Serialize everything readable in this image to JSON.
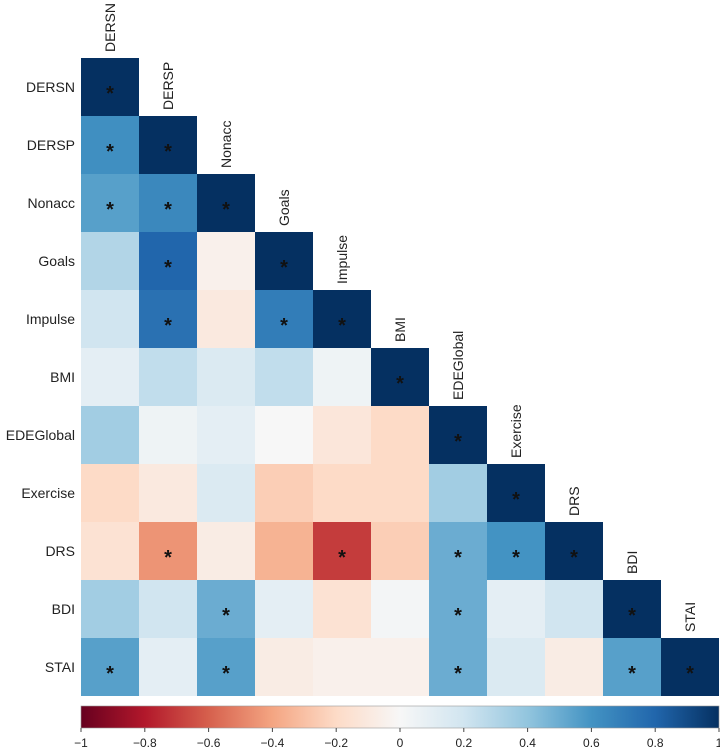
{
  "chart_data": {
    "type": "heatmap",
    "title": "",
    "variables": [
      "DERSN",
      "DERSP",
      "Nonacc",
      "Goals",
      "Impulse",
      "BMI",
      "EDEGlobal",
      "Exercise",
      "DRS",
      "BDI",
      "STAI"
    ],
    "values": [
      [
        1.0
      ],
      [
        0.62,
        1.0
      ],
      [
        0.55,
        0.65,
        1.0
      ],
      [
        0.3,
        0.8,
        -0.05,
        1.0
      ],
      [
        0.2,
        0.75,
        -0.1,
        0.7,
        1.0
      ],
      [
        0.1,
        0.25,
        0.15,
        0.25,
        0.05,
        1.0
      ],
      [
        0.35,
        0.05,
        0.1,
        0.0,
        -0.12,
        -0.2,
        1.0
      ],
      [
        -0.2,
        -0.1,
        0.15,
        -0.25,
        -0.2,
        -0.2,
        0.35,
        1.0
      ],
      [
        -0.15,
        -0.45,
        -0.08,
        -0.35,
        -0.7,
        -0.25,
        0.5,
        0.6,
        1.0
      ],
      [
        0.35,
        0.2,
        0.5,
        0.1,
        -0.15,
        0.02,
        0.5,
        0.1,
        0.2,
        1.0
      ],
      [
        0.55,
        0.1,
        0.55,
        -0.08,
        -0.05,
        -0.05,
        0.5,
        0.15,
        -0.08,
        0.55,
        1.0
      ]
    ],
    "significant": [
      [
        1
      ],
      [
        1,
        1
      ],
      [
        1,
        1,
        1
      ],
      [
        0,
        1,
        0,
        1
      ],
      [
        0,
        1,
        0,
        1,
        1
      ],
      [
        0,
        0,
        0,
        0,
        0,
        1
      ],
      [
        0,
        0,
        0,
        0,
        0,
        0,
        1
      ],
      [
        0,
        0,
        0,
        0,
        0,
        0,
        0,
        1
      ],
      [
        0,
        1,
        0,
        0,
        1,
        0,
        1,
        1,
        1
      ],
      [
        0,
        0,
        1,
        0,
        0,
        0,
        1,
        0,
        0,
        1
      ],
      [
        1,
        0,
        1,
        0,
        0,
        0,
        1,
        0,
        0,
        1,
        1
      ]
    ],
    "significance_marker": "*",
    "colorbar": {
      "range": [
        -1,
        1
      ],
      "ticks": [
        "−1",
        "−0.8",
        "−0.6",
        "−0.4",
        "−0.2",
        "0",
        "0.2",
        "0.4",
        "0.6",
        "0.8",
        "1"
      ],
      "placement": "bottom"
    },
    "colors": {
      "neg_max": "#67001f",
      "neg_mid": "#d6604d",
      "neutral": "#f7f7f7",
      "pos_mid": "#4393c3",
      "pos_max": "#053061"
    }
  }
}
